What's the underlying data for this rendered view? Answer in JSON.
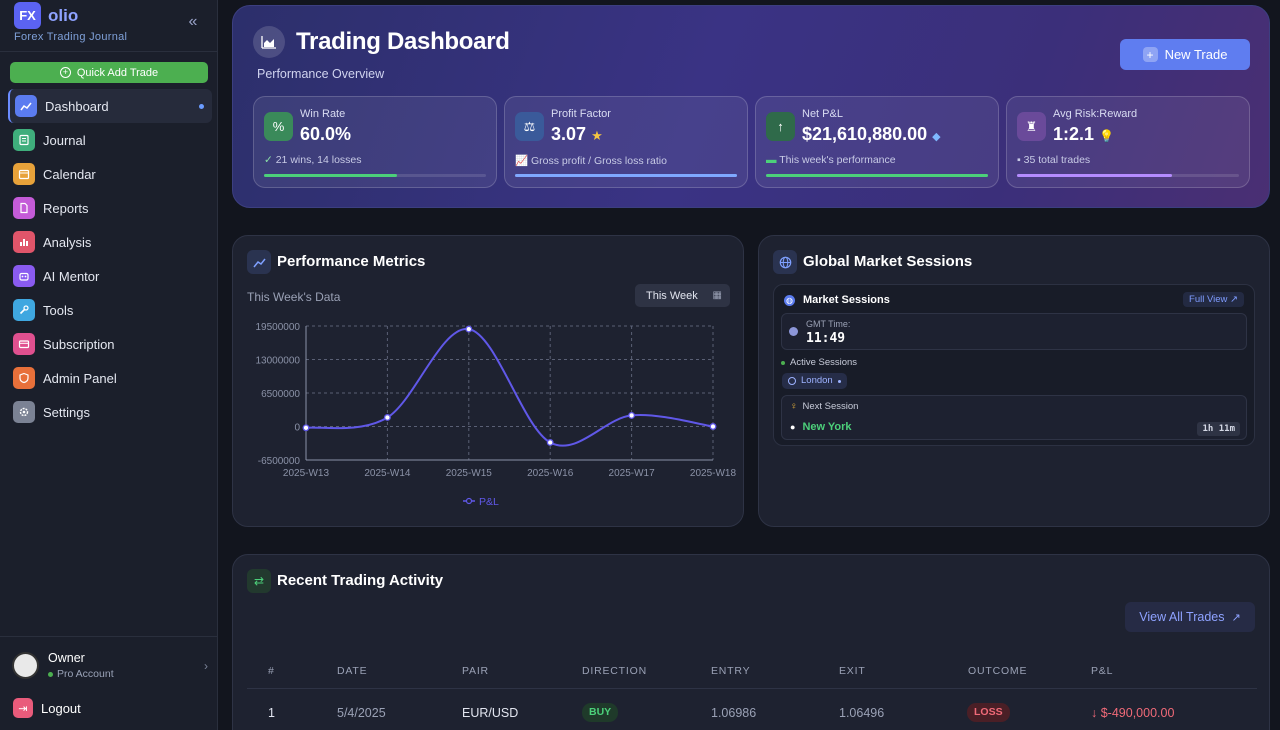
{
  "app": {
    "brand_logo": "FX",
    "brand_name": "olio",
    "brand_subtitle": "Forex Trading Journal",
    "collapse_icon": "chevrons-left-icon"
  },
  "sidebar": {
    "quick_add_label": "Quick Add Trade",
    "items": [
      {
        "label": "Dashboard",
        "icon": "trend-up-icon",
        "color": "#5b7cf0",
        "active": true
      },
      {
        "label": "Journal",
        "icon": "book-icon",
        "color": "#3fae7c"
      },
      {
        "label": "Calendar",
        "icon": "calendar-icon",
        "color": "#e8a23a"
      },
      {
        "label": "Reports",
        "icon": "report-icon",
        "color": "#c45bd8"
      },
      {
        "label": "Analysis",
        "icon": "bar-chart-icon",
        "color": "#e0556a"
      },
      {
        "label": "AI Mentor",
        "icon": "robot-icon",
        "color": "#8a5bf0"
      },
      {
        "label": "Tools",
        "icon": "wrench-icon",
        "color": "#3fa7e0"
      },
      {
        "label": "Subscription",
        "icon": "credit-card-icon",
        "color": "#e0508f"
      },
      {
        "label": "Admin Panel",
        "icon": "shield-icon",
        "color": "#e8703a"
      },
      {
        "label": "Settings",
        "icon": "gear-icon",
        "color": "#7b8294"
      }
    ],
    "user_name": "Owner",
    "user_role": "Pro Account",
    "logout_label": "Logout"
  },
  "hero": {
    "title": "Trading Dashboard",
    "subtitle": "Performance Overview",
    "new_trade_label": "New Trade",
    "stats": [
      {
        "label": "Win Rate",
        "value": "60.0%",
        "suffix_icon": "",
        "note": "21 wins, 14 losses",
        "note_icon": "check-icon",
        "icon": "percent-icon",
        "icon_color": "#3a8a5a",
        "progress": 0.6,
        "bar_color": "#4cd07a"
      },
      {
        "label": "Profit Factor",
        "value": "3.07",
        "suffix_icon": "star-icon",
        "note": "Gross profit / Gross loss ratio",
        "note_icon": "chart-icon",
        "icon": "scale-icon",
        "icon_color": "#3a5a9a",
        "progress": 1.0,
        "bar_color": "#7fa8ff"
      },
      {
        "label": "Net P&L",
        "value": "$21,610,880.00",
        "suffix_icon": "diamond-icon",
        "note": "This week's performance",
        "note_icon": "money-icon",
        "icon": "arrow-up-icon",
        "icon_color": "#2f6a4a",
        "progress": 1.0,
        "bar_color": "#4cd07a"
      },
      {
        "label": "Avg Risk:Reward",
        "value": "1:2.1",
        "suffix_icon": "bulb-icon",
        "note": "35 total trades",
        "note_icon": "briefcase-icon",
        "icon": "chess-icon",
        "icon_color": "#6a4a9a",
        "progress": 0.7,
        "bar_color": "#b58cff"
      }
    ]
  },
  "performance": {
    "title": "Performance Metrics",
    "subtitle": "This Week's Data",
    "period_select": "This Week"
  },
  "chart_data": {
    "type": "line",
    "categories": [
      "2025-W13",
      "2025-W14",
      "2025-W15",
      "2025-W16",
      "2025-W17",
      "2025-W18"
    ],
    "series": [
      {
        "name": "P&L",
        "values": [
          -250000,
          1750000,
          18900000,
          -3100000,
          2150000,
          0
        ],
        "color": "#6058e8"
      }
    ],
    "yticks": [
      19500000,
      13000000,
      6500000,
      0,
      -6500000
    ],
    "ytick_labels": [
      "19500000",
      "13000000",
      "6500000",
      "0",
      "-6500000"
    ],
    "ylim": [
      -6500000,
      19500000
    ],
    "legend": "bottom",
    "grid": true
  },
  "sessions": {
    "title": "Global Market Sessions",
    "panel_title": "Market Sessions",
    "full_view_label": "Full View",
    "gmt_label": "GMT Time:",
    "gmt_time": "11:49",
    "active_label": "Active Sessions",
    "active_sessions": [
      "London"
    ],
    "next_label": "Next Session",
    "next_city": "New York",
    "countdown": "1h 11m"
  },
  "activity": {
    "title": "Recent Trading Activity",
    "view_all_label": "View All Trades",
    "columns": [
      "#",
      "DATE",
      "PAIR",
      "DIRECTION",
      "ENTRY",
      "EXIT",
      "OUTCOME",
      "P&L"
    ],
    "rows": [
      {
        "num": "1",
        "date": "5/4/2025",
        "pair": "EUR/USD",
        "direction": "BUY",
        "entry": "1.06986",
        "exit": "1.06496",
        "outcome": "LOSS",
        "pnl": "$-490,000.00"
      }
    ]
  }
}
